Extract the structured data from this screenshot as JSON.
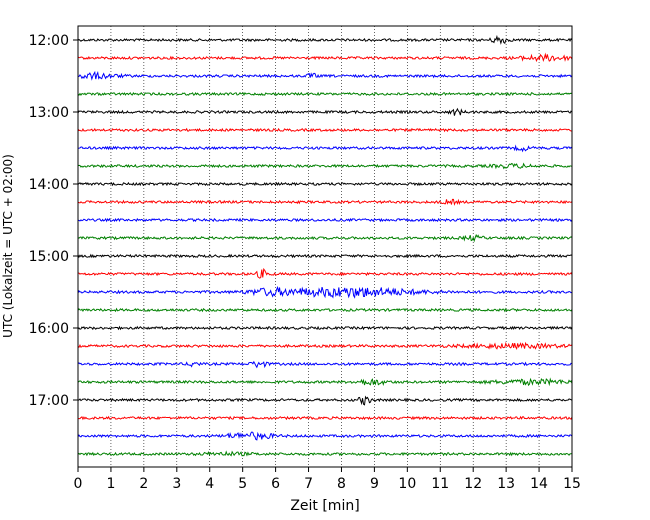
{
  "chart_data": {
    "type": "line",
    "xlabel": "Zeit  [min]",
    "ylabel": "UTC (Lokalzeit = UTC + 02:00)",
    "xlim": [
      0,
      15
    ],
    "x_ticks": [
      "0",
      "1",
      "2",
      "3",
      "4",
      "5",
      "6",
      "7",
      "8",
      "9",
      "10",
      "11",
      "12",
      "13",
      "14",
      "15"
    ],
    "y_ticks": [
      "12:00",
      "13:00",
      "14:00",
      "15:00",
      "16:00",
      "17:00"
    ],
    "grid": "vertical dotted at each minute",
    "legend": "none",
    "colors": [
      "#000000",
      "#ff0000",
      "#0000ff",
      "#008000"
    ],
    "traces": [
      {
        "start": "12:00",
        "color": "#000000"
      },
      {
        "start": "12:15",
        "color": "#ff0000"
      },
      {
        "start": "12:30",
        "color": "#0000ff"
      },
      {
        "start": "12:45",
        "color": "#008000"
      },
      {
        "start": "13:00",
        "color": "#000000"
      },
      {
        "start": "13:15",
        "color": "#ff0000"
      },
      {
        "start": "13:30",
        "color": "#0000ff"
      },
      {
        "start": "13:45",
        "color": "#008000"
      },
      {
        "start": "14:00",
        "color": "#000000"
      },
      {
        "start": "14:15",
        "color": "#ff0000"
      },
      {
        "start": "14:30",
        "color": "#0000ff"
      },
      {
        "start": "14:45",
        "color": "#008000"
      },
      {
        "start": "15:00",
        "color": "#000000"
      },
      {
        "start": "15:15",
        "color": "#ff0000"
      },
      {
        "start": "15:30",
        "color": "#0000ff"
      },
      {
        "start": "15:45",
        "color": "#008000"
      },
      {
        "start": "16:00",
        "color": "#000000"
      },
      {
        "start": "16:15",
        "color": "#ff0000"
      },
      {
        "start": "16:30",
        "color": "#0000ff"
      },
      {
        "start": "16:45",
        "color": "#008000"
      },
      {
        "start": "17:00",
        "color": "#000000"
      },
      {
        "start": "17:15",
        "color": "#ff0000"
      },
      {
        "start": "17:30",
        "color": "#0000ff"
      },
      {
        "start": "17:45",
        "color": "#008000"
      }
    ]
  }
}
